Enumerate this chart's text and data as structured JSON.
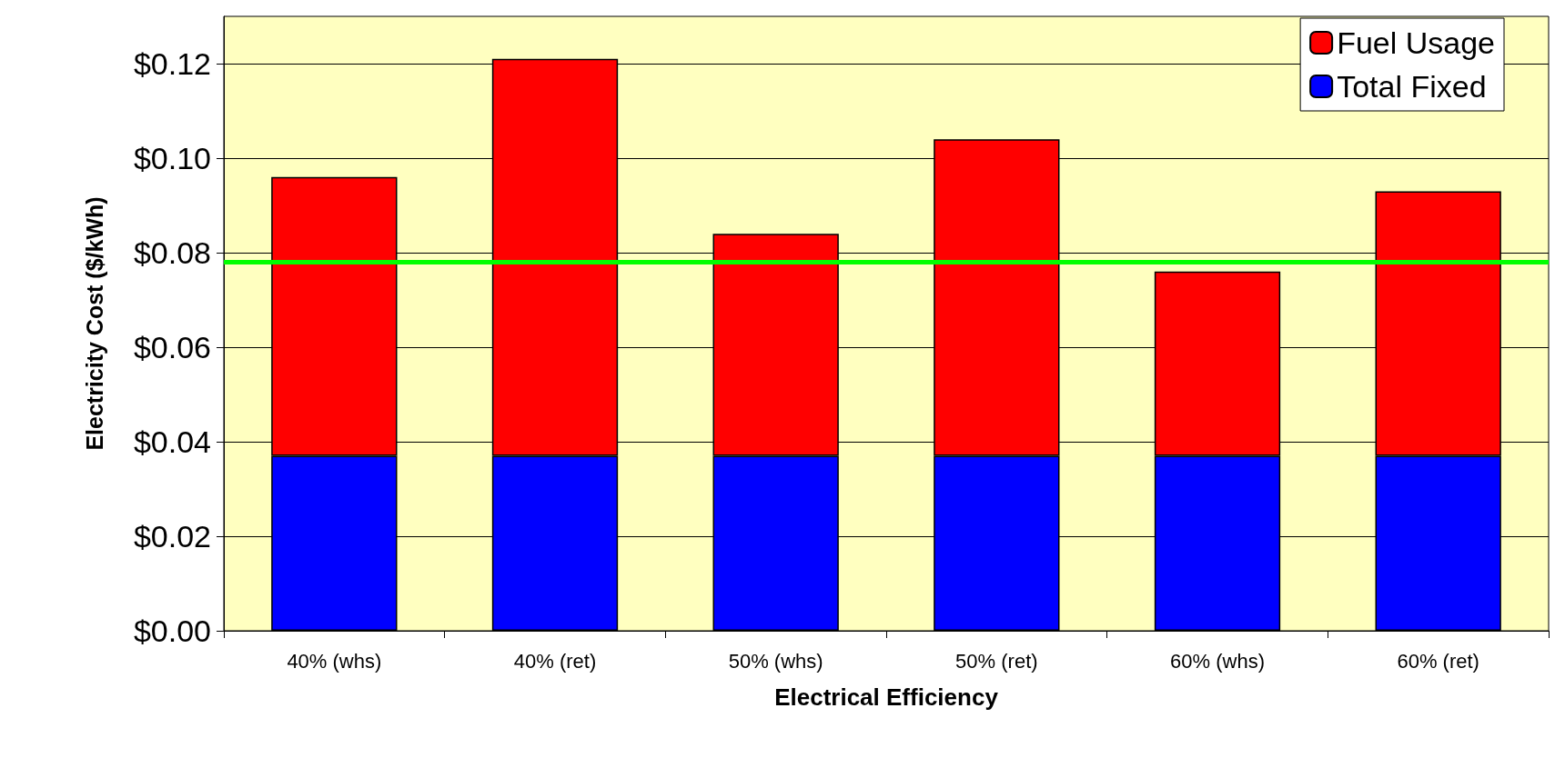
{
  "chart_data": {
    "type": "bar",
    "stacked": true,
    "xlabel": "Electrical Efficiency",
    "ylabel": "Electricity Cost ($/kWh)",
    "categories": [
      "40% (whs)",
      "40% (ret)",
      "50% (whs)",
      "50% (ret)",
      "60% (whs)",
      "60% (ret)"
    ],
    "series": [
      {
        "name": "Total Fixed",
        "color": "#0000ff",
        "values": [
          0.037,
          0.037,
          0.037,
          0.037,
          0.037,
          0.037
        ]
      },
      {
        "name": "Fuel Usage",
        "color": "#ff0000",
        "values": [
          0.059,
          0.084,
          0.047,
          0.067,
          0.039,
          0.056
        ]
      }
    ],
    "ylim": [
      0,
      0.13
    ],
    "yticks": [
      {
        "value": 0,
        "label": "$0.00"
      },
      {
        "value": 0.02,
        "label": "$0.02"
      },
      {
        "value": 0.04,
        "label": "$0.04"
      },
      {
        "value": 0.06,
        "label": "$0.06"
      },
      {
        "value": 0.08,
        "label": "$0.08"
      },
      {
        "value": 0.1,
        "label": "$0.10"
      },
      {
        "value": 0.12,
        "label": "$0.12"
      }
    ],
    "ref_lines": [
      {
        "axis": "y",
        "value": 0.078,
        "color": "#00ff00"
      }
    ],
    "grid": "y",
    "legend": "top right"
  }
}
